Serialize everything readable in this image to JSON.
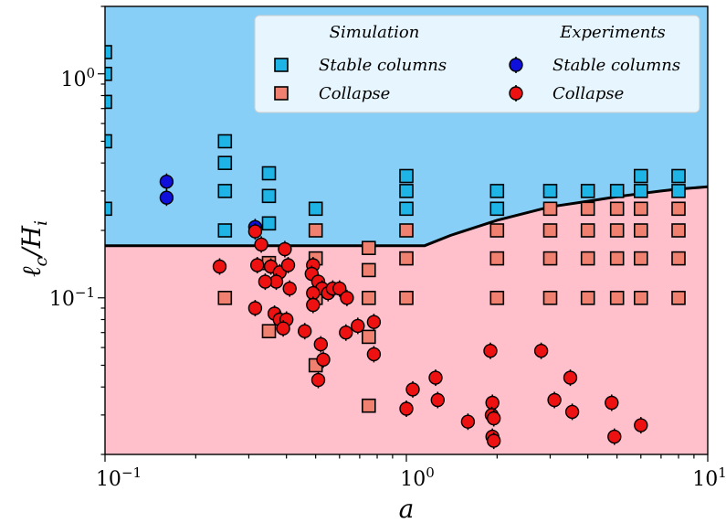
{
  "chart_data": {
    "type": "scatter",
    "xscale": "log",
    "yscale": "log",
    "xlim": [
      0.1,
      10
    ],
    "ylim": [
      0.02,
      2.0
    ],
    "xlabel": "a",
    "ylabel": "ℓc/Hi",
    "grid": false,
    "legend": {
      "placement": "top-right",
      "groups": [
        {
          "title": "Simulation",
          "entries": [
            {
              "label": "Stable columns",
              "marker": "square",
              "color": "#1fb4e6"
            },
            {
              "label": "Collapse",
              "marker": "square",
              "color": "#f08070"
            }
          ]
        },
        {
          "title": "Experiments",
          "entries": [
            {
              "label": "Stable columns",
              "marker": "circle",
              "color": "#1010dd"
            },
            {
              "label": "Collapse",
              "marker": "circle",
              "color": "#ee1111"
            }
          ]
        }
      ]
    },
    "regions": {
      "stable_color": "#88cff8",
      "collapse_color": "#ffc0cb",
      "boundary": [
        [
          0.1,
          0.171
        ],
        [
          1.15,
          0.171
        ],
        [
          1.4,
          0.19
        ],
        [
          2.0,
          0.222
        ],
        [
          3.0,
          0.255
        ],
        [
          4.0,
          0.27
        ],
        [
          5.0,
          0.283
        ],
        [
          6.0,
          0.292
        ],
        [
          7.0,
          0.3
        ],
        [
          8.0,
          0.306
        ],
        [
          10.0,
          0.313
        ]
      ]
    },
    "series": [
      {
        "name": "Simulation Stable columns",
        "marker": "square",
        "color": "#1fb4e6",
        "points": [
          [
            0.1,
            1.25
          ],
          [
            0.1,
            1.0
          ],
          [
            0.1,
            0.75
          ],
          [
            0.1,
            0.5
          ],
          [
            0.1,
            0.25
          ],
          [
            0.25,
            0.5
          ],
          [
            0.25,
            0.4
          ],
          [
            0.25,
            0.3
          ],
          [
            0.25,
            0.2
          ],
          [
            0.35,
            0.36
          ],
          [
            0.35,
            0.285
          ],
          [
            0.35,
            0.215
          ],
          [
            0.5,
            0.25
          ],
          [
            1.0,
            0.35
          ],
          [
            1.0,
            0.3
          ],
          [
            1.0,
            0.25
          ],
          [
            2.0,
            0.3
          ],
          [
            2.0,
            0.25
          ],
          [
            3.0,
            0.3
          ],
          [
            4.0,
            0.3
          ],
          [
            5.0,
            0.3
          ],
          [
            6.0,
            0.35
          ],
          [
            6.0,
            0.3
          ],
          [
            8.0,
            0.35
          ],
          [
            8.0,
            0.3
          ]
        ]
      },
      {
        "name": "Simulation Collapse",
        "marker": "square",
        "color": "#f08070",
        "points": [
          [
            0.25,
            0.1
          ],
          [
            0.35,
            0.143
          ],
          [
            0.35,
            0.071
          ],
          [
            0.5,
            0.2
          ],
          [
            0.5,
            0.15
          ],
          [
            0.5,
            0.1
          ],
          [
            0.5,
            0.05
          ],
          [
            0.75,
            0.167
          ],
          [
            0.75,
            0.133
          ],
          [
            0.75,
            0.1
          ],
          [
            0.75,
            0.067
          ],
          [
            0.75,
            0.033
          ],
          [
            1.0,
            0.2
          ],
          [
            1.0,
            0.15
          ],
          [
            1.0,
            0.1
          ],
          [
            2.0,
            0.2
          ],
          [
            2.0,
            0.15
          ],
          [
            2.0,
            0.1
          ],
          [
            3.0,
            0.25
          ],
          [
            3.0,
            0.2
          ],
          [
            3.0,
            0.15
          ],
          [
            3.0,
            0.1
          ],
          [
            4.0,
            0.25
          ],
          [
            4.0,
            0.2
          ],
          [
            4.0,
            0.15
          ],
          [
            4.0,
            0.1
          ],
          [
            5.0,
            0.25
          ],
          [
            5.0,
            0.2
          ],
          [
            5.0,
            0.15
          ],
          [
            5.0,
            0.1
          ],
          [
            6.0,
            0.25
          ],
          [
            6.0,
            0.2
          ],
          [
            6.0,
            0.15
          ],
          [
            6.0,
            0.1
          ],
          [
            8.0,
            0.25
          ],
          [
            8.0,
            0.2
          ],
          [
            8.0,
            0.15
          ],
          [
            8.0,
            0.1
          ]
        ]
      },
      {
        "name": "Experiments Stable columns",
        "marker": "circle",
        "color": "#1010dd",
        "points": [
          [
            0.16,
            0.33
          ],
          [
            0.16,
            0.28
          ],
          [
            0.315,
            0.207
          ]
        ]
      },
      {
        "name": "Experiments Collapse",
        "marker": "circle",
        "color": "#ee1111",
        "points": [
          [
            0.315,
            0.198
          ],
          [
            0.24,
            0.138
          ],
          [
            0.33,
            0.173
          ],
          [
            0.395,
            0.165
          ],
          [
            0.32,
            0.14
          ],
          [
            0.355,
            0.138
          ],
          [
            0.38,
            0.13
          ],
          [
            0.405,
            0.14
          ],
          [
            0.37,
            0.118
          ],
          [
            0.41,
            0.11
          ],
          [
            0.34,
            0.118
          ],
          [
            0.49,
            0.14
          ],
          [
            0.485,
            0.128
          ],
          [
            0.51,
            0.118
          ],
          [
            0.525,
            0.11
          ],
          [
            0.55,
            0.105
          ],
          [
            0.57,
            0.11
          ],
          [
            0.6,
            0.11
          ],
          [
            0.635,
            0.1
          ],
          [
            0.49,
            0.105
          ],
          [
            0.49,
            0.093
          ],
          [
            0.315,
            0.09
          ],
          [
            0.365,
            0.085
          ],
          [
            0.38,
            0.08
          ],
          [
            0.4,
            0.08
          ],
          [
            0.39,
            0.073
          ],
          [
            0.46,
            0.071
          ],
          [
            0.69,
            0.075
          ],
          [
            0.63,
            0.07
          ],
          [
            0.78,
            0.078
          ],
          [
            0.52,
            0.062
          ],
          [
            0.53,
            0.053
          ],
          [
            0.51,
            0.043
          ],
          [
            0.78,
            0.056
          ],
          [
            1.0,
            0.032
          ],
          [
            1.05,
            0.039
          ],
          [
            1.25,
            0.044
          ],
          [
            1.27,
            0.035
          ],
          [
            1.6,
            0.028
          ],
          [
            1.9,
            0.058
          ],
          [
            1.93,
            0.034
          ],
          [
            1.92,
            0.03
          ],
          [
            1.95,
            0.029
          ],
          [
            1.93,
            0.024
          ],
          [
            1.95,
            0.023
          ],
          [
            2.8,
            0.058
          ],
          [
            3.1,
            0.035
          ],
          [
            3.5,
            0.044
          ],
          [
            3.55,
            0.031
          ],
          [
            4.8,
            0.034
          ],
          [
            4.9,
            0.024
          ],
          [
            6.0,
            0.027
          ]
        ]
      }
    ]
  },
  "axes": {
    "x_ticks": [
      {
        "base": "10",
        "exp": "−1"
      },
      {
        "base": "10",
        "exp": "0"
      },
      {
        "base": "10",
        "exp": "1"
      }
    ],
    "y_ticks": [
      {
        "base": "10",
        "exp": "−1"
      },
      {
        "base": "10",
        "exp": "0"
      }
    ],
    "xlabel": "a",
    "ylabel_main": "ℓ",
    "ylabel_sub1": "c",
    "ylabel_slash": "/H",
    "ylabel_sub2": "i"
  },
  "legend_text": {
    "sim_title": "Simulation",
    "exp_title": "Experiments",
    "sim_stable": "Stable columns",
    "sim_collapse": "Collapse",
    "exp_stable": "Stable columns",
    "exp_collapse": "Collapse"
  }
}
